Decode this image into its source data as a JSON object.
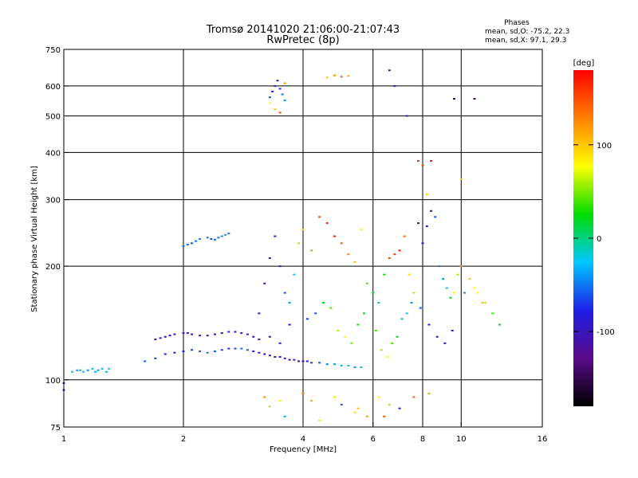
{
  "chart_data": {
    "type": "scatter",
    "title": "Tromsø 20141020 21:06:00-21:07:43",
    "subtitle": "RwPretec (8p)",
    "phase_note": {
      "heading": "Phases",
      "line1": "mean, sd,O: -75.2, 22.3",
      "line2": "mean, sd,X:  97.1, 29.3"
    },
    "xlabel": "Frequency [MHz]",
    "ylabel": "Stationary phase Virtual Height [km]",
    "x_scale": "log",
    "y_scale": "log",
    "xlim": [
      1,
      16
    ],
    "ylim": [
      75,
      750
    ],
    "x_ticks": [
      1,
      2,
      4,
      6,
      8,
      10,
      16
    ],
    "y_ticks": [
      75,
      100,
      200,
      300,
      400,
      500,
      600,
      750
    ],
    "x_gridlines": [
      2,
      4,
      6,
      8,
      10
    ],
    "y_gridlines": [
      100,
      200,
      300,
      400,
      500,
      600
    ],
    "grid": true,
    "colorbar": {
      "label": "[deg]",
      "range": [
        -180,
        180
      ],
      "ticks": [
        100,
        0,
        -100
      ],
      "colormap": [
        "#000000",
        "#5a0a8a",
        "#1e1ee6",
        "#00c8ff",
        "#00dc00",
        "#ffff00",
        "#ff8000",
        "#ff0000"
      ]
    },
    "series": [
      {
        "x": [
          1.0,
          1.0,
          1.05,
          1.08,
          1.1,
          1.12,
          1.15,
          1.18,
          1.2,
          1.22,
          1.25,
          1.28,
          1.3
        ],
        "y": [
          94,
          98,
          105,
          106,
          106,
          105,
          106,
          107,
          105,
          106,
          107,
          105,
          107
        ],
        "phase": [
          -90,
          -80,
          -30,
          -40,
          -35,
          -30,
          -40,
          -30,
          -35,
          -40,
          -30,
          -35,
          -25
        ]
      },
      {
        "x": [
          1.6,
          1.7,
          1.8,
          1.9,
          2.0,
          2.1,
          2.2,
          2.3,
          2.4,
          2.5,
          2.6,
          2.7,
          2.8,
          2.9,
          3.0,
          3.1,
          3.2,
          3.3,
          3.4,
          3.5,
          3.6,
          3.7,
          3.8,
          3.9,
          4.0,
          4.1,
          4.2,
          4.4,
          4.6,
          4.8,
          5.0,
          5.2,
          5.4,
          5.6
        ],
        "y": [
          112,
          114,
          117,
          118,
          119,
          120,
          119,
          118,
          119,
          120,
          121,
          121,
          121,
          120,
          119,
          118,
          117,
          116,
          115,
          115,
          114,
          113,
          113,
          112,
          112,
          112,
          111,
          111,
          110,
          110,
          109,
          109,
          108,
          108
        ],
        "phase": [
          -60,
          -70,
          -80,
          -80,
          -75,
          -70,
          -60,
          -50,
          -60,
          -65,
          -70,
          -60,
          -55,
          -60,
          -80,
          -90,
          -100,
          -100,
          -95,
          -90,
          -100,
          -110,
          -100,
          -95,
          -90,
          -80,
          -70,
          -60,
          -50,
          -40,
          -30,
          -20,
          -40,
          -30
        ]
      },
      {
        "x": [
          1.7,
          1.75,
          1.8,
          1.85,
          1.9,
          2.0,
          2.05,
          2.1,
          2.2,
          2.3,
          2.4,
          2.5,
          2.6,
          2.7,
          2.8,
          2.9,
          3.0,
          3.1
        ],
        "y": [
          128,
          129,
          130,
          131,
          132,
          133,
          133,
          132,
          131,
          131,
          132,
          133,
          134,
          134,
          133,
          132,
          130,
          128
        ],
        "phase": [
          -90,
          -95,
          -100,
          -100,
          -95,
          -90,
          -85,
          -80,
          -85,
          -90,
          -95,
          -90,
          -80,
          -85,
          -90,
          -100,
          -95,
          -90
        ]
      },
      {
        "x": [
          2.0,
          2.05,
          2.1,
          2.15,
          2.2,
          2.3,
          2.35,
          2.4,
          2.45,
          2.5,
          2.55,
          2.6
        ],
        "y": [
          226,
          228,
          230,
          233,
          236,
          238,
          236,
          235,
          238,
          240,
          242,
          244
        ],
        "phase": [
          -50,
          -55,
          -60,
          -50,
          -45,
          -50,
          -60,
          -55,
          -50,
          -45,
          -40,
          -50
        ]
      },
      {
        "x": [
          3.1,
          3.2,
          3.3,
          3.4,
          3.5,
          3.6,
          3.7,
          3.8,
          3.9,
          4.0,
          4.2,
          4.4,
          4.6,
          4.8,
          5.0,
          5.2,
          5.4,
          5.6,
          5.8,
          6.0,
          6.2,
          6.4,
          6.6,
          6.8,
          7.0,
          7.2,
          7.4,
          7.6,
          7.8,
          8.0,
          8.2,
          8.4,
          8.6,
          8.8,
          9.0,
          9.2,
          9.4,
          9.6,
          9.8,
          10.0,
          10.5,
          11.0,
          11.5,
          12.0,
          12.5,
          3.3,
          3.5,
          3.7,
          4.1,
          4.3,
          4.5,
          4.7,
          4.9,
          5.1,
          5.3,
          5.5,
          5.7,
          6.1,
          6.3,
          6.5,
          6.7,
          6.9,
          7.1,
          7.3,
          7.5,
          7.9,
          8.3,
          8.7,
          9.1,
          9.5,
          10.2,
          10.8,
          11.3
        ],
        "y": [
          150,
          180,
          210,
          240,
          200,
          170,
          160,
          190,
          230,
          250,
          220,
          270,
          260,
          240,
          230,
          215,
          205,
          250,
          180,
          170,
          160,
          190,
          210,
          215,
          220,
          240,
          190,
          170,
          260,
          230,
          255,
          280,
          270,
          200,
          185,
          175,
          165,
          170,
          190,
          200,
          185,
          170,
          160,
          150,
          140,
          130,
          125,
          140,
          145,
          150,
          160,
          155,
          135,
          130,
          125,
          140,
          150,
          135,
          120,
          115,
          125,
          130,
          145,
          150,
          160,
          155,
          140,
          130,
          125,
          135,
          170,
          175,
          160
        ],
        "phase": [
          -110,
          -100,
          -95,
          -90,
          -80,
          -60,
          -40,
          -20,
          60,
          90,
          120,
          150,
          160,
          170,
          150,
          130,
          100,
          80,
          40,
          20,
          0,
          30,
          150,
          160,
          170,
          140,
          90,
          60,
          -90,
          -80,
          -100,
          -110,
          -60,
          -50,
          -40,
          -30,
          20,
          80,
          60,
          120,
          100,
          80,
          60,
          40,
          20,
          -100,
          -90,
          -80,
          -70,
          -60,
          20,
          40,
          60,
          80,
          50,
          30,
          10,
          40,
          60,
          80,
          40,
          20,
          0,
          -20,
          -40,
          -60,
          -80,
          -100,
          -110,
          -90,
          -40,
          80,
          100
        ]
      },
      {
        "x": [
          3.3,
          3.35,
          3.4,
          3.45,
          3.5,
          3.55,
          3.6,
          3.4,
          3.5,
          3.3,
          3.6
        ],
        "y": [
          560,
          580,
          600,
          620,
          590,
          570,
          550,
          520,
          510,
          540,
          610
        ],
        "phase": [
          -60,
          -80,
          -100,
          -90,
          -70,
          -50,
          -40,
          100,
          150,
          80,
          120
        ]
      },
      {
        "x": [
          4.6,
          4.8,
          5.0,
          5.2,
          6.6,
          7.3,
          9.6,
          10.8,
          6.8,
          7.8,
          8.0,
          8.4,
          10.0,
          8.2
        ],
        "y": [
          632,
          640,
          635,
          638,
          660,
          500,
          555,
          555,
          600,
          380,
          370,
          380,
          340,
          310
        ],
        "phase": [
          100,
          120,
          140,
          110,
          -100,
          -110,
          -150,
          -140,
          -90,
          160,
          150,
          170,
          90,
          100
        ]
      },
      {
        "x": [
          3.2,
          3.3,
          3.5,
          3.6,
          4.0,
          4.2,
          4.8,
          5.0,
          5.5,
          5.8,
          6.2,
          6.6,
          7.0,
          7.6,
          8.3,
          4.4,
          5.4,
          6.4
        ],
        "y": [
          90,
          85,
          88,
          80,
          92,
          88,
          90,
          86,
          84,
          80,
          90,
          86,
          84,
          90,
          92,
          78,
          82,
          80
        ],
        "phase": [
          120,
          100,
          80,
          -40,
          130,
          110,
          90,
          -60,
          100,
          120,
          80,
          60,
          -80,
          140,
          110,
          70,
          90,
          150
        ]
      }
    ]
  }
}
